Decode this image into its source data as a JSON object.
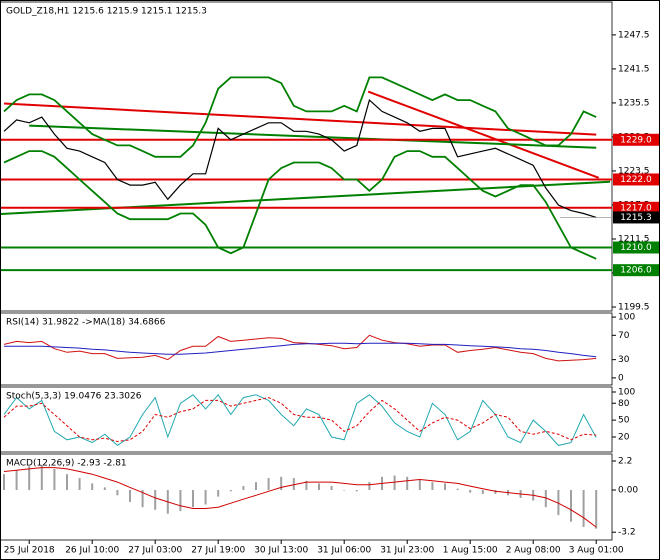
{
  "chart_data": [
    {
      "type": "line",
      "title": "GOLD_Z18,H1  1215.6 1215.9 1215.1 1215.3",
      "categories": [
        null,
        null,
        "25 Jul 2018",
        null,
        null,
        null,
        null,
        "26 Jul 10:00",
        null,
        null,
        null,
        null,
        "27 Jul 03:00",
        null,
        null,
        null,
        null,
        "27 Jul 19:00",
        null,
        null,
        null,
        null,
        "30 Jul 13:00",
        null,
        null,
        null,
        null,
        "31 Jul 06:00",
        null,
        null,
        null,
        null,
        "31 Jul 23:00",
        null,
        null,
        null,
        null,
        "1 Aug 15:00",
        null,
        null,
        null,
        null,
        "2 Aug 08:00",
        null,
        null,
        null,
        null,
        "3 Aug 01:00"
      ],
      "ylim": [
        1198.8,
        1253.3
      ],
      "yticks": [
        1199.5,
        1205.5,
        1211.5,
        1217.5,
        1223.5,
        1229.5,
        1235.5,
        1241.5,
        1247.5
      ],
      "series": [
        {
          "name": "Price",
          "color": "#000000",
          "style": "line",
          "values": [
            1230.5,
            1232.5,
            1232,
            1233,
            1230,
            1227.5,
            1227,
            1226,
            1225,
            1222,
            1221,
            1221,
            1221.5,
            1218.5,
            1221,
            1223,
            1223,
            1231,
            1229,
            1230,
            1231,
            1232,
            1232,
            1230.5,
            1230.5,
            1230,
            1229,
            1227,
            1228,
            1236,
            1234,
            1233,
            1232,
            1230.5,
            1231,
            1231,
            1226,
            1226.5,
            1227,
            1227.5,
            1226.5,
            1225.5,
            1224.5,
            1220.5,
            1217.5,
            1216.5,
            1216,
            1215.3
          ]
        },
        {
          "name": "BB Upper",
          "color": "#008000",
          "style": "line",
          "values": [
            1234,
            1236,
            1237,
            1237,
            1236,
            1234,
            1232,
            1230,
            1229,
            1228,
            1228,
            1227,
            1226,
            1226,
            1226,
            1228,
            1232,
            1238,
            1240,
            1240,
            1240,
            1240,
            1239,
            1235,
            1234,
            1234,
            1234,
            1235,
            1234,
            1240,
            1240,
            1239,
            1238,
            1237,
            1236,
            1237,
            1236,
            1236,
            1235,
            1234,
            1231,
            1230,
            1229,
            1228,
            1228,
            1230,
            1234,
            1233
          ]
        },
        {
          "name": "BB Lower",
          "color": "#008000",
          "style": "line",
          "values": [
            1225,
            1226,
            1227,
            1227,
            1226,
            1224,
            1222,
            1220,
            1218,
            1216,
            1215,
            1215,
            1215,
            1215,
            1216,
            1216,
            1214,
            1210,
            1209,
            1210,
            1216,
            1222,
            1224,
            1225,
            1225,
            1225,
            1224,
            1222,
            1222,
            1220,
            1222,
            1226,
            1227,
            1227,
            1226,
            1226,
            1224,
            1222,
            1220,
            1219,
            1220,
            1221,
            1221,
            1218,
            1214,
            1210,
            1209,
            1208
          ]
        }
      ],
      "trendlines": [
        {
          "color": "#e00000",
          "points": [
            [
              0,
              1235.4
            ],
            [
              47,
              1229.9
            ]
          ]
        },
        {
          "color": "#e00000",
          "points": [
            [
              28.9,
              1237.5
            ],
            [
              47.2,
              1222.3
            ]
          ]
        },
        {
          "color": "#008000",
          "points": [
            [
              -0.3,
              1215.9
            ],
            [
              48.1,
              1221.6
            ]
          ]
        },
        {
          "color": "#008000",
          "points": [
            [
              2,
              1231.5
            ],
            [
              47,
              1227.6
            ]
          ]
        }
      ],
      "levels": [
        {
          "value": 1229,
          "label": "1229.0",
          "color": "#e00000"
        },
        {
          "value": 1222,
          "label": "1222.0",
          "color": "#e00000"
        },
        {
          "value": 1217,
          "label": "1217.0",
          "color": "#e00000"
        },
        {
          "value": 1210,
          "label": "1210.0",
          "color": "#008000"
        },
        {
          "value": 1206,
          "label": "1206.0",
          "color": "#008000"
        }
      ],
      "current_price": 1215.3
    },
    {
      "type": "line",
      "title": "RSI(14) 31.9822 ->MA(18) 34.6866",
      "ylim": [
        -11.7,
        106.7
      ],
      "yticks": [
        0,
        30,
        70,
        100
      ],
      "series": [
        {
          "name": "RSI",
          "color": "#d01010",
          "style": "line",
          "values": [
            55,
            60,
            58,
            60,
            48,
            42,
            44,
            40,
            40,
            32,
            33,
            34,
            37,
            30,
            45,
            52,
            52,
            68,
            60,
            62,
            64,
            66,
            65,
            58,
            57,
            55,
            53,
            48,
            50,
            70,
            62,
            58,
            56,
            52,
            54,
            54,
            42,
            45,
            47,
            50,
            46,
            42,
            40,
            32,
            28,
            29,
            30,
            31.9822
          ]
        },
        {
          "name": "MA",
          "color": "#2020c0",
          "style": "line",
          "values": [
            52,
            52,
            52,
            52,
            51,
            50,
            49,
            47,
            46,
            44,
            42,
            41,
            40,
            39,
            39,
            40,
            41,
            43,
            45,
            47,
            49,
            51,
            53,
            55,
            56,
            56,
            57,
            57,
            56,
            57,
            57,
            57,
            57,
            56,
            55,
            55,
            54,
            53,
            52,
            51,
            50,
            48,
            47,
            45,
            42,
            40,
            37,
            34.6866
          ]
        }
      ]
    },
    {
      "type": "line",
      "title": "Stoch(5,3,3) 19.0476 23.3026",
      "ylim": [
        -6.7,
        108.9
      ],
      "yticks": [
        20,
        50,
        80,
        100
      ],
      "series": [
        {
          "name": "Main",
          "color": "#20a8b0",
          "style": "line",
          "values": [
            60,
            90,
            70,
            85,
            30,
            15,
            20,
            10,
            25,
            5,
            20,
            60,
            90,
            20,
            80,
            95,
            70,
            95,
            60,
            90,
            95,
            85,
            60,
            40,
            70,
            60,
            20,
            15,
            80,
            95,
            75,
            45,
            30,
            20,
            80,
            60,
            15,
            30,
            85,
            60,
            20,
            10,
            50,
            30,
            5,
            10,
            60,
            19.0476
          ]
        },
        {
          "name": "Signal",
          "color": "#e00000",
          "style": "dash",
          "values": [
            55,
            75,
            75,
            80,
            60,
            40,
            20,
            15,
            18,
            12,
            15,
            30,
            60,
            55,
            65,
            70,
            85,
            85,
            75,
            80,
            85,
            90,
            80,
            60,
            55,
            55,
            50,
            30,
            40,
            65,
            85,
            70,
            50,
            30,
            45,
            55,
            50,
            35,
            45,
            60,
            55,
            30,
            25,
            30,
            25,
            15,
            25,
            23.3026
          ]
        }
      ]
    },
    {
      "type": "bar",
      "title": "MACD(12,26,9) -2.93 -2.81",
      "ylim": [
        -3.79,
        2.73
      ],
      "yticks": [
        -3.2,
        {
          "value": 0,
          "label": "0.00"
        },
        2.2
      ],
      "series": [
        {
          "name": "MACD",
          "color": "#a0a0a0",
          "style": "bar",
          "values": [
            1.2,
            1.5,
            1.8,
            1.9,
            1.6,
            1.2,
            0.9,
            0.5,
            0.2,
            -0.4,
            -0.9,
            -1.3,
            -1.5,
            -1.8,
            -1.6,
            -1.3,
            -1.1,
            -0.5,
            -0.1,
            0.3,
            0.6,
            0.9,
            1.0,
            0.9,
            0.7,
            0.5,
            0.3,
            0.0,
            -0.1,
            0.6,
            1.0,
            1.1,
            1.0,
            0.8,
            0.6,
            0.5,
            0.1,
            -0.2,
            -0.3,
            -0.3,
            -0.4,
            -0.6,
            -0.8,
            -1.3,
            -1.9,
            -2.4,
            -2.8,
            -2.93
          ]
        },
        {
          "name": "Signal",
          "color": "#d00000",
          "style": "line",
          "values": [
            1.4,
            1.5,
            1.6,
            1.7,
            1.7,
            1.6,
            1.4,
            1.2,
            0.9,
            0.6,
            0.2,
            -0.2,
            -0.6,
            -0.9,
            -1.2,
            -1.4,
            -1.4,
            -1.3,
            -1.0,
            -0.7,
            -0.4,
            -0.1,
            0.2,
            0.4,
            0.6,
            0.6,
            0.6,
            0.5,
            0.4,
            0.4,
            0.5,
            0.6,
            0.7,
            0.8,
            0.7,
            0.6,
            0.5,
            0.3,
            0.1,
            -0.1,
            -0.2,
            -0.3,
            -0.4,
            -0.6,
            -1.0,
            -1.5,
            -2.1,
            -2.81
          ]
        }
      ]
    }
  ]
}
